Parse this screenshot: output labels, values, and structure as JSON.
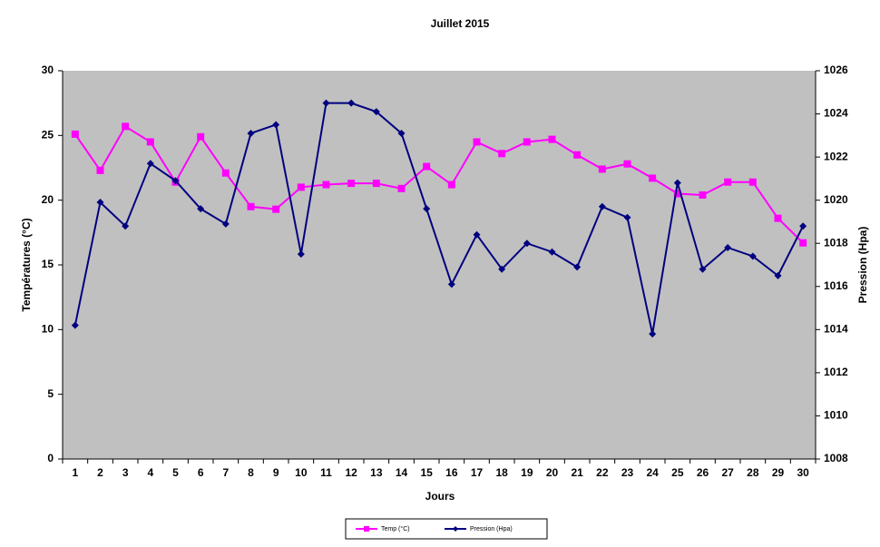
{
  "chart_data": {
    "type": "line",
    "title": "Juillet 2015",
    "x_label": "Jours",
    "y_label": "Températures (°C)",
    "y2_label": "Pression (Hpa)",
    "categories": [
      "1",
      "2",
      "3",
      "4",
      "5",
      "6",
      "7",
      "8",
      "9",
      "10",
      "11",
      "12",
      "13",
      "14",
      "15",
      "16",
      "17",
      "18",
      "19",
      "20",
      "21",
      "22",
      "23",
      "24",
      "25",
      "26",
      "27",
      "28",
      "29",
      "30"
    ],
    "series": [
      {
        "name": "Temp (°C)",
        "color": "#ff00ff",
        "marker": "square",
        "values": [
          25.1,
          22.3,
          25.7,
          24.5,
          21.4,
          24.9,
          22.1,
          19.5,
          19.3,
          21.0,
          21.2,
          21.3,
          21.3,
          20.9,
          22.6,
          21.2,
          24.5,
          23.6,
          24.5,
          24.7,
          23.5,
          22.4,
          22.8,
          21.7,
          20.5,
          20.4,
          21.4,
          21.4,
          18.6,
          16.7
        ]
      },
      {
        "name": "Pression (Hpa)",
        "color": "#000080",
        "marker": "diamond",
        "axis": "y2",
        "values": [
          1014.2,
          1019.9,
          1018.8,
          1021.7,
          1020.9,
          1019.6,
          1018.9,
          1023.1,
          1023.5,
          1017.5,
          1024.5,
          1024.5,
          1024.1,
          1023.1,
          1019.6,
          1016.1,
          1018.4,
          1016.8,
          1018.0,
          1017.6,
          1016.9,
          1019.7,
          1019.2,
          1013.8,
          1020.8,
          1016.8,
          1017.8,
          1017.4,
          1016.5,
          1018.8
        ]
      }
    ],
    "ylim": [
      0,
      30
    ],
    "yticks": [
      0,
      5,
      10,
      15,
      20,
      25,
      30
    ],
    "y2lim": [
      1008,
      1026
    ],
    "y2ticks": [
      1008,
      1010,
      1012,
      1014,
      1016,
      1018,
      1020,
      1022,
      1024,
      1026
    ],
    "plot_background": "#c0c0c0",
    "legend": "bottom"
  }
}
